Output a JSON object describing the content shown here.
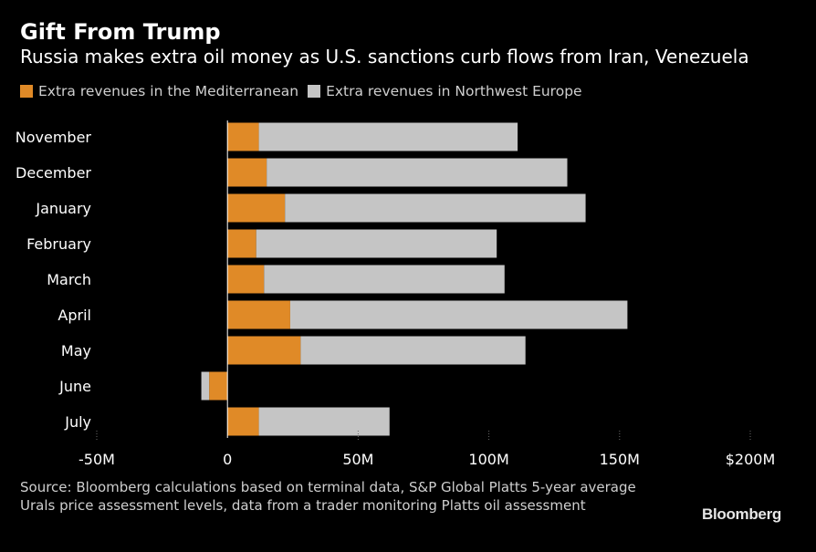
{
  "title": "Gift From Trump",
  "subtitle": "Russia makes extra oil money as U.S. sanctions curb flows from Iran, Venezuela",
  "legend": [
    {
      "label": "Extra revenues in the Mediterranean",
      "color": "#e08a27"
    },
    {
      "label": "Extra revenues in Northwest Europe",
      "color": "#c5c5c5"
    }
  ],
  "source": "Source: Bloomberg calculations based on terminal data, S&P Global Platts 5-year average\nUrals price assessment levels, data from a trader monitoring Platts oil assessment",
  "brand": "Bloomberg",
  "colors": {
    "background": "#000000",
    "mediterranean": "#e08a27",
    "northwest_europe": "#c5c5c5",
    "text": "#ffffff",
    "muted_text": "#cfcfcf"
  },
  "chart_data": {
    "type": "bar",
    "orientation": "horizontal",
    "stacked": true,
    "categories": [
      "November",
      "December",
      "January",
      "February",
      "March",
      "April",
      "May",
      "June",
      "July"
    ],
    "series": [
      {
        "name": "Extra revenues in the Mediterranean",
        "values": [
          12,
          15,
          22,
          11,
          14,
          24,
          28,
          -7,
          12
        ]
      },
      {
        "name": "Extra revenues in Northwest Europe",
        "values": [
          99,
          115,
          115,
          92,
          92,
          129,
          86,
          -3,
          50
        ]
      }
    ],
    "xlim": [
      -50,
      200
    ],
    "ticks": [
      {
        "value": -50,
        "label": "-50M"
      },
      {
        "value": 0,
        "label": "0"
      },
      {
        "value": 50,
        "label": "50M"
      },
      {
        "value": 100,
        "label": "100M"
      },
      {
        "value": 150,
        "label": "150M"
      },
      {
        "value": 200,
        "label": "$200M"
      }
    ],
    "unit": "USD millions",
    "grid": "vertical dotted tick marks at bottom"
  }
}
